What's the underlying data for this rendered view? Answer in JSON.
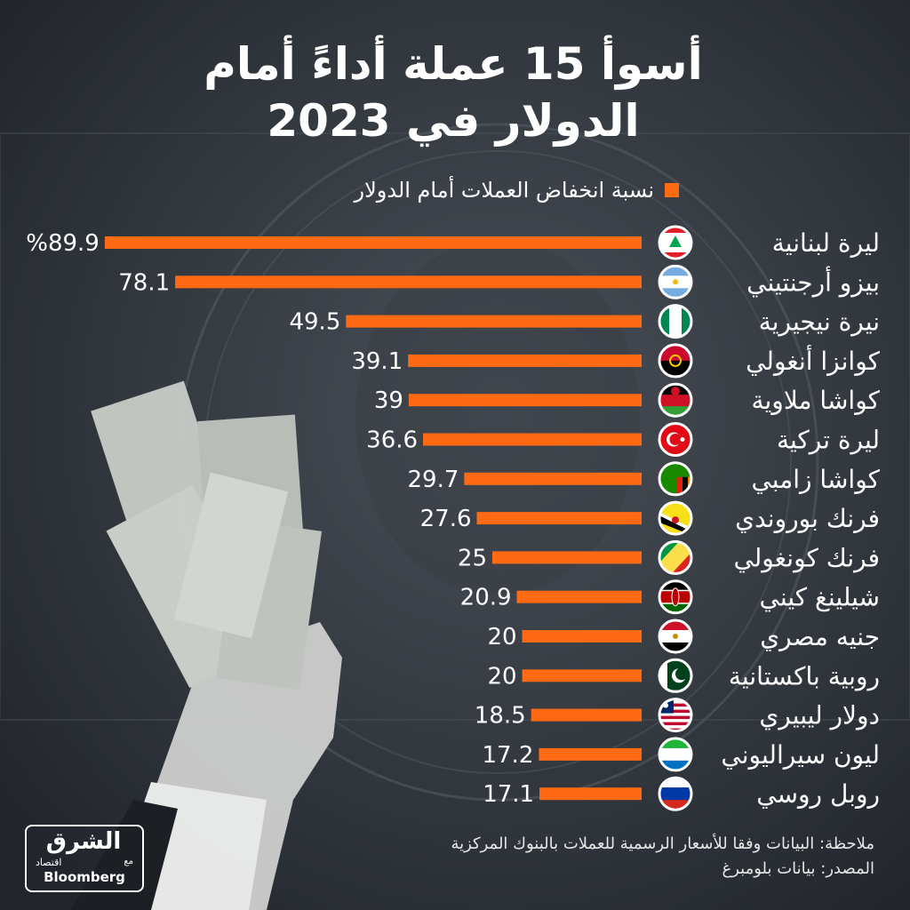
{
  "header": {
    "title_line1": "أسوأ 15 عملة أداءً أمام",
    "title_line2": "الدولار في 2023"
  },
  "legend": {
    "label": "نسبة انخفاض العملات أمام الدولار",
    "color": "#ff6a13"
  },
  "chart_data": {
    "type": "bar",
    "orientation": "horizontal",
    "categories": [
      "ليرة لبنانية",
      "بيزو أرجنتيني",
      "نيرة نيجيرية",
      "كوانزا أنغولي",
      "كواشا ملاوية",
      "ليرة تركية",
      "كواشا زامبي",
      "فرنك بوروندي",
      "فرنك كونغولي",
      "شيلينغ كيني",
      "جنيه مصري",
      "روبية باكستانية",
      "دولار ليبيري",
      "ليون سيراليوني",
      "روبل روسي"
    ],
    "series": [
      {
        "values": [
          89.9,
          78.1,
          49.5,
          39.1,
          39,
          36.6,
          29.7,
          27.6,
          25,
          20.9,
          20,
          20,
          18.5,
          17.2,
          17.1
        ]
      }
    ],
    "value_labels": [
      "%89.9",
      "78.1",
      "49.5",
      "39.1",
      "39",
      "36.6",
      "29.7",
      "27.6",
      "25",
      "20.9",
      "20",
      "20",
      "18.5",
      "17.2",
      "17.1"
    ],
    "flags": [
      "lebanon-flag",
      "argentina-flag",
      "nigeria-flag",
      "angola-flag",
      "malawi-flag",
      "turkey-flag",
      "zambia-flag",
      "burundi-flag",
      "congo-flag",
      "kenya-flag",
      "egypt-flag",
      "pakistan-flag",
      "liberia-flag",
      "sierra-leone-flag",
      "russia-flag"
    ],
    "xlim": [
      0,
      100
    ],
    "bar_color": "#ff6a13",
    "grid": false
  },
  "footer": {
    "note": "ملاحظة: البيانات وفقا للأسعار الرسمية للعملات بالبنوك المركزية",
    "source": "المصدر: بيانات بلومبرغ"
  },
  "logo": {
    "arabic": "الشرق",
    "sub": "اقتصاد",
    "with": "مع",
    "english": "Bloomberg"
  }
}
